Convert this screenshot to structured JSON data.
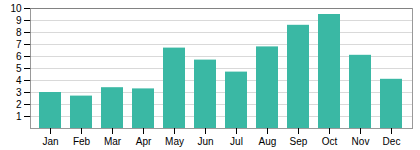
{
  "chart_data": {
    "type": "bar",
    "categories": [
      "Jan",
      "Feb",
      "Mar",
      "Apr",
      "May",
      "Jun",
      "Jul",
      "Aug",
      "Sep",
      "Oct",
      "Nov",
      "Dec"
    ],
    "values": [
      3.0,
      2.7,
      3.4,
      3.3,
      6.7,
      5.7,
      4.7,
      6.8,
      8.6,
      9.5,
      6.1,
      4.1
    ],
    "color": "#3ab8a4",
    "ylim": [
      0,
      10
    ],
    "yticks": [
      1,
      2,
      3,
      4,
      5,
      6,
      7,
      8,
      9,
      10
    ],
    "grid": true
  }
}
